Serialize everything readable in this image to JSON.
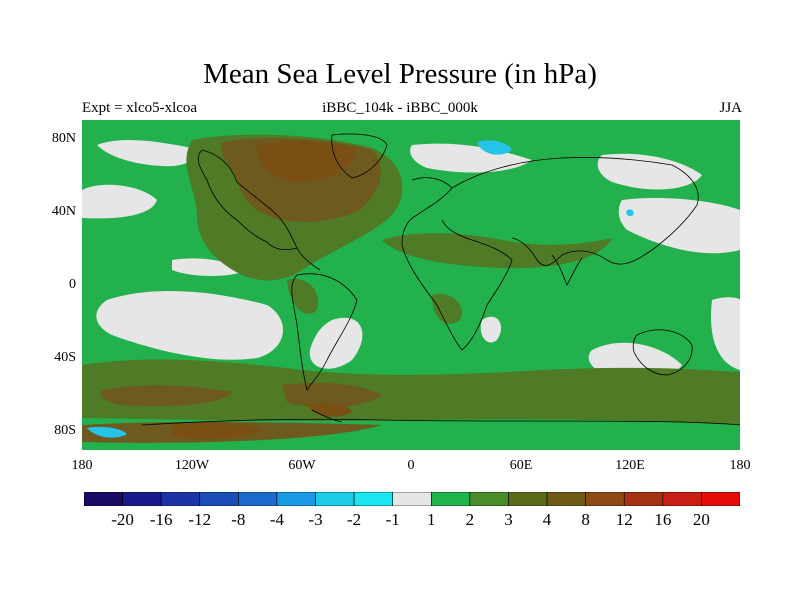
{
  "title": "Mean Sea Level Pressure (in hPa)",
  "subtitle_left": "Expt = xlco5-xlcoa",
  "subtitle_center": "iBBC_104k - iBBC_000k",
  "subtitle_right": "JJA",
  "lat_labels": [
    "80N",
    "40N",
    "0",
    "40S",
    "80S"
  ],
  "lon_labels": [
    "180",
    "120W",
    "60W",
    "0",
    "60E",
    "120E",
    "180"
  ],
  "colorbar": {
    "labels": [
      "-20",
      "-16",
      "-12",
      "-8",
      "-4",
      "-3",
      "-2",
      "-1",
      "1",
      "2",
      "3",
      "4",
      "8",
      "12",
      "16",
      "20"
    ],
    "colors": [
      "#1a0a66",
      "#1a1a8c",
      "#1a33a6",
      "#1a4db8",
      "#1a6ad0",
      "#1a99e6",
      "#1acce6",
      "#19e6f0",
      "#e6e6e6",
      "#1eb44a",
      "#4a8c2a",
      "#5a6b1a",
      "#6e5a14",
      "#8c4a14",
      "#a63214",
      "#c81e14",
      "#e60a0a"
    ]
  },
  "colors": {
    "green": "#22b14c",
    "olive": "#4f7a26",
    "brown": "#6e5a1e",
    "dark_brown": "#7a4f14",
    "light_gray": "#e6e6e6",
    "cyan": "#23c4e8",
    "coast": "#000000"
  }
}
